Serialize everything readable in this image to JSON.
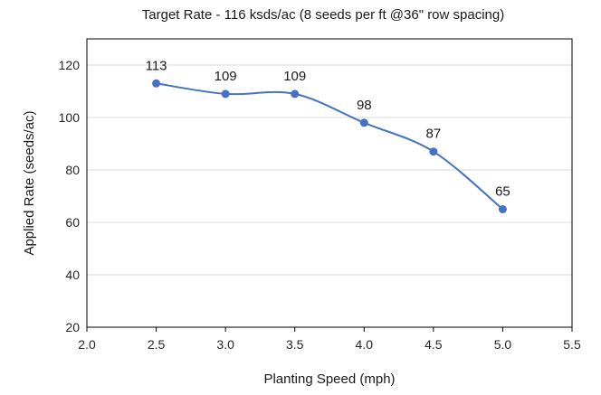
{
  "chart_data": {
    "type": "line",
    "title": "Target Rate - 116 ksds/ac (8 seeds per ft @36\" row spacing)",
    "xlabel": "Planting Speed  (mph)",
    "ylabel": "Applied Rate (seeds/ac)",
    "xlim": [
      2.0,
      5.5
    ],
    "ylim": [
      20,
      130
    ],
    "xticks": [
      "2.0",
      "2.5",
      "3.0",
      "3.5",
      "4.0",
      "4.5",
      "5.0",
      "5.5"
    ],
    "yticks": [
      "20",
      "40",
      "60",
      "80",
      "100",
      "120"
    ],
    "grid": "horizontal",
    "legend": "none",
    "series": [
      {
        "color": "#4472c4",
        "x": [
          2.5,
          3.0,
          3.5,
          4.0,
          4.5,
          5.0
        ],
        "values": [
          113,
          109,
          109,
          98,
          87,
          65
        ],
        "labels": [
          "113",
          "109",
          "109",
          "98",
          "87",
          "65"
        ]
      }
    ]
  }
}
